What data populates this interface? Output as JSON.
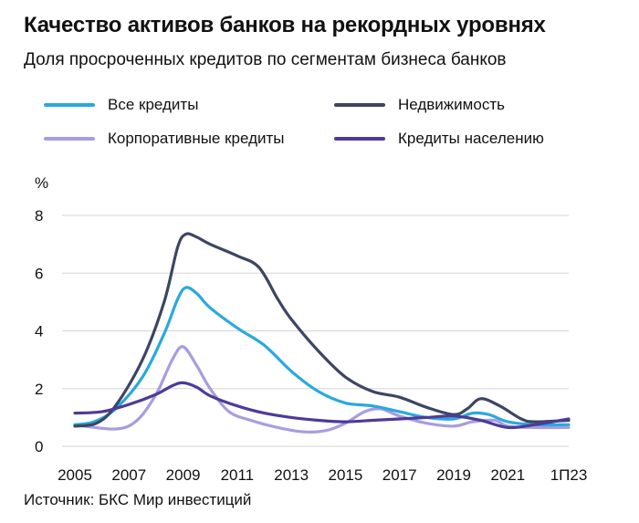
{
  "header": {
    "title": "Качество активов банков на рекордных уровнях",
    "subtitle": "Доля просроченных кредитов по сегментам бизнеса банков"
  },
  "source": "Источник: БКС Мир инвестиций",
  "chart_data": {
    "type": "line",
    "title": "Качество активов банков на рекордных уровнях",
    "subtitle": "Доля просроченных кредитов по сегментам бизнеса банков",
    "ylabel": "%",
    "xlabel": "",
    "ylim": [
      0,
      8
    ],
    "yticks": [
      0,
      2,
      4,
      6,
      8
    ],
    "xlim": [
      2005,
      2023.25
    ],
    "xtick_values": [
      2005,
      2007,
      2009,
      2011,
      2013,
      2015,
      2017,
      2019,
      2021,
      2023.25
    ],
    "xtick_labels": [
      "2005",
      "2007",
      "2009",
      "2011",
      "2013",
      "2015",
      "2017",
      "2019",
      "2021",
      "1П23"
    ],
    "grid": true,
    "legend_position": "top",
    "series": [
      {
        "name": "Все кредиты",
        "color": "#29a9df",
        "points": [
          [
            2005.0,
            0.75
          ],
          [
            2005.7,
            0.85
          ],
          [
            2006.5,
            1.3
          ],
          [
            2007.5,
            2.4
          ],
          [
            2008.3,
            3.9
          ],
          [
            2008.8,
            5.1
          ],
          [
            2009.1,
            5.5
          ],
          [
            2009.5,
            5.3
          ],
          [
            2010.0,
            4.8
          ],
          [
            2011.0,
            4.1
          ],
          [
            2012.0,
            3.5
          ],
          [
            2013.0,
            2.6
          ],
          [
            2014.0,
            1.9
          ],
          [
            2015.0,
            1.5
          ],
          [
            2016.0,
            1.4
          ],
          [
            2017.0,
            1.2
          ],
          [
            2018.0,
            1.0
          ],
          [
            2019.0,
            0.95
          ],
          [
            2019.7,
            1.15
          ],
          [
            2020.3,
            1.1
          ],
          [
            2021.0,
            0.85
          ],
          [
            2022.0,
            0.75
          ],
          [
            2023.25,
            0.75
          ]
        ]
      },
      {
        "name": "Недвижимость",
        "color": "#3c4663",
        "points": [
          [
            2005.0,
            0.7
          ],
          [
            2005.8,
            0.8
          ],
          [
            2006.5,
            1.4
          ],
          [
            2007.5,
            3.0
          ],
          [
            2008.3,
            5.0
          ],
          [
            2008.8,
            6.9
          ],
          [
            2009.1,
            7.35
          ],
          [
            2009.5,
            7.25
          ],
          [
            2010.0,
            7.0
          ],
          [
            2011.0,
            6.6
          ],
          [
            2011.8,
            6.2
          ],
          [
            2012.5,
            5.1
          ],
          [
            2013.0,
            4.4
          ],
          [
            2014.0,
            3.3
          ],
          [
            2015.0,
            2.4
          ],
          [
            2016.0,
            1.9
          ],
          [
            2017.0,
            1.7
          ],
          [
            2018.0,
            1.35
          ],
          [
            2019.0,
            1.1
          ],
          [
            2019.5,
            1.3
          ],
          [
            2020.0,
            1.65
          ],
          [
            2020.7,
            1.4
          ],
          [
            2021.5,
            0.95
          ],
          [
            2022.0,
            0.85
          ],
          [
            2023.25,
            0.9
          ]
        ]
      },
      {
        "name": "Корпоративные кредиты",
        "color": "#a89de0",
        "points": [
          [
            2005.0,
            0.75
          ],
          [
            2006.5,
            0.6
          ],
          [
            2007.3,
            0.9
          ],
          [
            2008.0,
            1.8
          ],
          [
            2008.6,
            3.0
          ],
          [
            2009.0,
            3.45
          ],
          [
            2009.5,
            2.8
          ],
          [
            2010.0,
            2.0
          ],
          [
            2010.7,
            1.2
          ],
          [
            2011.5,
            0.9
          ],
          [
            2012.5,
            0.65
          ],
          [
            2013.5,
            0.5
          ],
          [
            2014.3,
            0.55
          ],
          [
            2015.0,
            0.8
          ],
          [
            2015.7,
            1.2
          ],
          [
            2016.3,
            1.3
          ],
          [
            2017.0,
            1.05
          ],
          [
            2018.0,
            0.8
          ],
          [
            2019.0,
            0.7
          ],
          [
            2019.7,
            0.85
          ],
          [
            2020.5,
            0.9
          ],
          [
            2021.0,
            0.7
          ],
          [
            2022.0,
            0.65
          ],
          [
            2023.25,
            0.65
          ]
        ]
      },
      {
        "name": "Кредиты населению",
        "color": "#4e3a98",
        "points": [
          [
            2005.0,
            1.15
          ],
          [
            2006.0,
            1.2
          ],
          [
            2007.0,
            1.45
          ],
          [
            2008.0,
            1.8
          ],
          [
            2008.6,
            2.1
          ],
          [
            2009.0,
            2.2
          ],
          [
            2009.5,
            2.05
          ],
          [
            2010.0,
            1.75
          ],
          [
            2011.0,
            1.4
          ],
          [
            2012.0,
            1.15
          ],
          [
            2013.0,
            1.0
          ],
          [
            2014.0,
            0.9
          ],
          [
            2015.0,
            0.85
          ],
          [
            2016.0,
            0.9
          ],
          [
            2017.0,
            0.95
          ],
          [
            2018.0,
            1.0
          ],
          [
            2019.0,
            1.05
          ],
          [
            2020.0,
            0.9
          ],
          [
            2021.0,
            0.65
          ],
          [
            2022.0,
            0.75
          ],
          [
            2023.25,
            0.95
          ]
        ]
      }
    ]
  }
}
